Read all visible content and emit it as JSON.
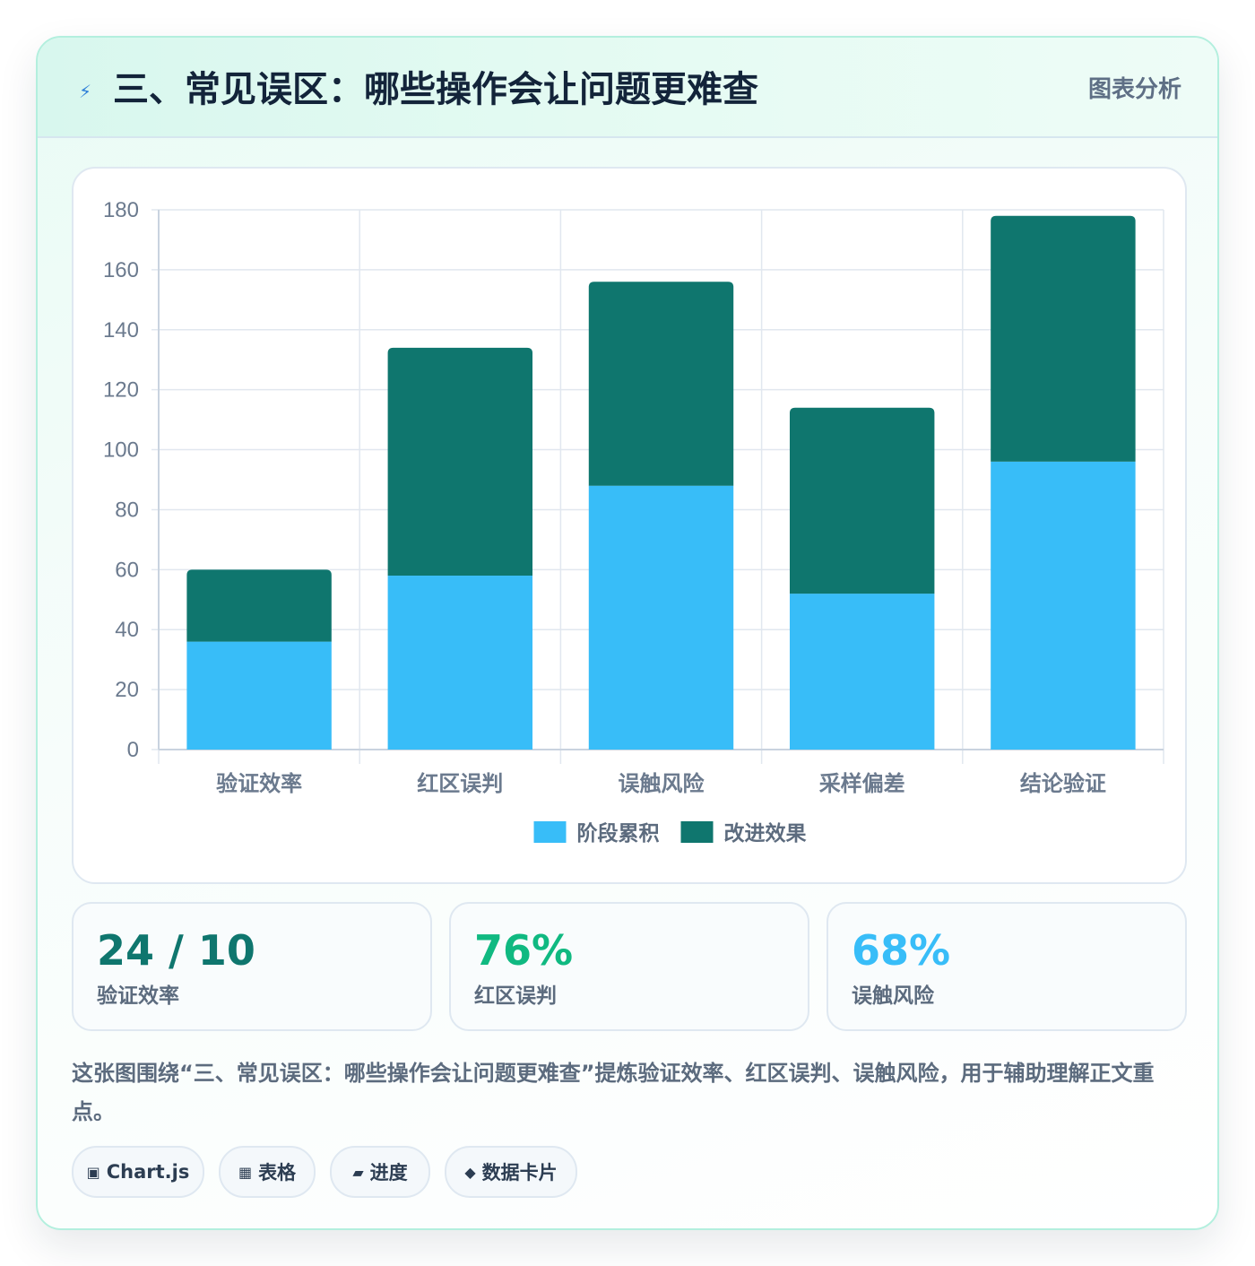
{
  "header": {
    "title": "三、常见误区：哪些操作会让问题更难查",
    "badge": "图表分析",
    "icon": "bolt-icon"
  },
  "chart_data": {
    "type": "bar",
    "stacked": true,
    "categories": [
      "验证效率",
      "红区误判",
      "误触风险",
      "采样偏差",
      "结论验证"
    ],
    "series": [
      {
        "name": "阶段累积",
        "values": [
          36,
          58,
          88,
          52,
          96
        ],
        "color": "#38bdf8"
      },
      {
        "name": "改进效果",
        "values": [
          24,
          76,
          68,
          62,
          82
        ],
        "color": "#0f766e"
      }
    ],
    "ylim": [
      0,
      180
    ],
    "yticks": [
      0,
      20,
      40,
      60,
      80,
      100,
      120,
      140,
      160,
      180
    ],
    "grid": true,
    "legend_position": "bottom"
  },
  "stats": [
    {
      "value": "24 / 10",
      "label": "验证效率",
      "color": "#0f766e"
    },
    {
      "value": "76%",
      "label": "红区误判",
      "color": "#10b981"
    },
    {
      "value": "68%",
      "label": "误触风险",
      "color": "#38bdf8"
    }
  ],
  "summary": "这张图围绕“三、常见误区：哪些操作会让问题更难查”提炼验证效率、红区误判、误触风险，用于辅助理解正文重点。",
  "chips": [
    {
      "icon": "▣",
      "label": "Chart.js"
    },
    {
      "icon": "▦",
      "label": "表格"
    },
    {
      "icon": "▰",
      "label": "进度"
    },
    {
      "icon": "◆",
      "label": "数据卡片"
    }
  ]
}
